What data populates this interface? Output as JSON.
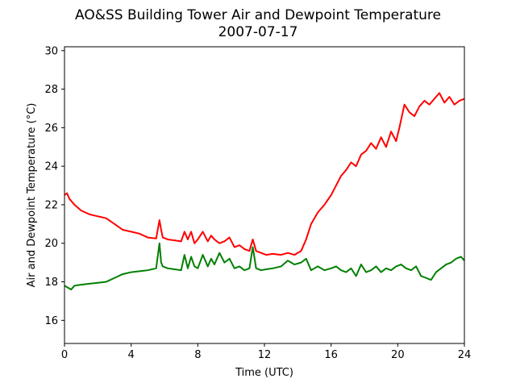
{
  "chart_data": {
    "type": "line",
    "title": "AO&SS Building Tower Air and Dewpoint Temperature",
    "subtitle": "2007-07-17",
    "xlabel": "Time (UTC)",
    "ylabel": "Air and Dewpoint Temperature (°C)",
    "xlim": [
      0,
      24
    ],
    "ylim": [
      14.8,
      30.2
    ],
    "xticks": [
      0,
      4,
      8,
      12,
      16,
      20,
      24
    ],
    "yticks": [
      16,
      18,
      20,
      22,
      24,
      26,
      28,
      30
    ],
    "grid": false,
    "series": [
      {
        "color": "#ff0000",
        "x": [
          0,
          0.15,
          0.3,
          0.6,
          1.0,
          1.5,
          2.0,
          2.5,
          3.0,
          3.5,
          4.0,
          4.5,
          5.0,
          5.5,
          5.7,
          5.8,
          5.9,
          6.2,
          6.6,
          7.0,
          7.2,
          7.4,
          7.6,
          7.8,
          8.0,
          8.3,
          8.6,
          8.8,
          9.0,
          9.3,
          9.6,
          9.9,
          10.2,
          10.5,
          10.8,
          11.1,
          11.3,
          11.5,
          11.8,
          12.1,
          12.5,
          13.0,
          13.4,
          13.8,
          14.2,
          14.5,
          14.8,
          15.2,
          15.6,
          16.0,
          16.3,
          16.6,
          16.9,
          17.2,
          17.5,
          17.8,
          18.1,
          18.4,
          18.7,
          19.0,
          19.3,
          19.6,
          19.9,
          20.1,
          20.4,
          20.7,
          21.0,
          21.3,
          21.6,
          21.9,
          22.2,
          22.5,
          22.8,
          23.1,
          23.4,
          23.7,
          24.0
        ],
        "values": [
          22.5,
          22.6,
          22.3,
          22.0,
          21.7,
          21.5,
          21.4,
          21.3,
          21.0,
          20.7,
          20.6,
          20.5,
          20.3,
          20.25,
          21.2,
          20.7,
          20.3,
          20.2,
          20.15,
          20.1,
          20.6,
          20.2,
          20.6,
          20.0,
          20.2,
          20.6,
          20.1,
          20.4,
          20.2,
          20.0,
          20.1,
          20.3,
          19.8,
          19.9,
          19.7,
          19.6,
          20.2,
          19.6,
          19.5,
          19.4,
          19.45,
          19.4,
          19.5,
          19.4,
          19.6,
          20.2,
          21.0,
          21.6,
          22.0,
          22.5,
          23.0,
          23.5,
          23.8,
          24.2,
          24.0,
          24.6,
          24.8,
          25.2,
          24.9,
          25.5,
          25.0,
          25.8,
          25.3,
          26.0,
          27.2,
          26.8,
          26.6,
          27.1,
          27.4,
          27.2,
          27.5,
          27.8,
          27.3,
          27.6,
          27.2,
          27.4,
          27.5
        ]
      },
      {
        "color": "#008000",
        "x": [
          0,
          0.2,
          0.4,
          0.6,
          1.0,
          1.5,
          2.0,
          2.5,
          3.0,
          3.5,
          4.0,
          4.5,
          5.0,
          5.5,
          5.7,
          5.8,
          5.9,
          6.2,
          6.6,
          7.0,
          7.2,
          7.4,
          7.6,
          7.8,
          8.0,
          8.3,
          8.6,
          8.8,
          9.0,
          9.3,
          9.6,
          9.9,
          10.2,
          10.5,
          10.8,
          11.1,
          11.3,
          11.5,
          11.8,
          12.1,
          12.5,
          13.0,
          13.4,
          13.8,
          14.2,
          14.5,
          14.8,
          15.2,
          15.6,
          16.0,
          16.3,
          16.6,
          16.9,
          17.2,
          17.5,
          17.8,
          18.1,
          18.4,
          18.7,
          19.0,
          19.3,
          19.6,
          19.9,
          20.2,
          20.5,
          20.8,
          21.1,
          21.4,
          21.7,
          22.0,
          22.3,
          22.6,
          22.9,
          23.2,
          23.5,
          23.8,
          24.0
        ],
        "values": [
          17.8,
          17.7,
          17.6,
          17.8,
          17.85,
          17.9,
          17.95,
          18.0,
          18.2,
          18.4,
          18.5,
          18.55,
          18.6,
          18.7,
          20.0,
          19.0,
          18.8,
          18.7,
          18.65,
          18.6,
          19.4,
          18.7,
          19.3,
          18.8,
          18.7,
          19.4,
          18.8,
          19.2,
          18.9,
          19.5,
          19.0,
          19.2,
          18.7,
          18.8,
          18.6,
          18.7,
          19.8,
          18.7,
          18.6,
          18.65,
          18.7,
          18.8,
          19.1,
          18.9,
          19.0,
          19.2,
          18.6,
          18.8,
          18.6,
          18.7,
          18.8,
          18.6,
          18.5,
          18.7,
          18.3,
          18.9,
          18.5,
          18.6,
          18.8,
          18.5,
          18.7,
          18.6,
          18.8,
          18.9,
          18.7,
          18.6,
          18.8,
          18.3,
          18.2,
          18.1,
          18.5,
          18.7,
          18.9,
          19.0,
          19.2,
          19.3,
          19.1
        ]
      }
    ]
  }
}
